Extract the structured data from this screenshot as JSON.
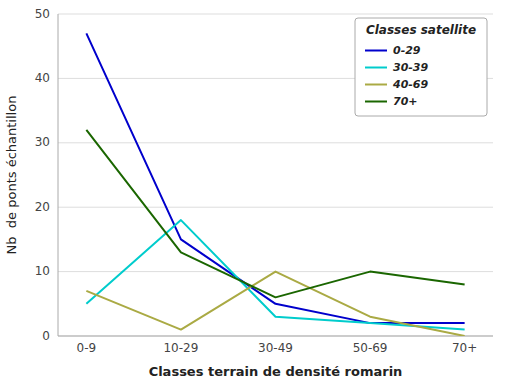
{
  "chart_data": {
    "type": "line",
    "categories": [
      "0-9",
      "10-29",
      "30-49",
      "50-69",
      "70+"
    ],
    "series": [
      {
        "name": "0-29",
        "color": "#0000CC",
        "values": [
          47,
          15,
          5,
          2,
          2
        ]
      },
      {
        "name": "30-39",
        "color": "#00CCCC",
        "values": [
          5,
          18,
          3,
          2,
          1
        ]
      },
      {
        "name": "40-69",
        "color": "#AAAA44",
        "values": [
          7,
          1,
          10,
          3,
          0
        ]
      },
      {
        "name": "70+",
        "color": "#1A6600",
        "values": [
          32,
          13,
          6,
          10,
          8
        ]
      }
    ],
    "x_label": "Classes terrain de densité romarin",
    "y_label": "Nb  de ponts échantillon",
    "legend_title": "Classes satellite",
    "ylim": [
      0,
      50
    ],
    "yticks": [
      0,
      10,
      20,
      30,
      40,
      50
    ],
    "grid": true,
    "legend": "upper right"
  }
}
